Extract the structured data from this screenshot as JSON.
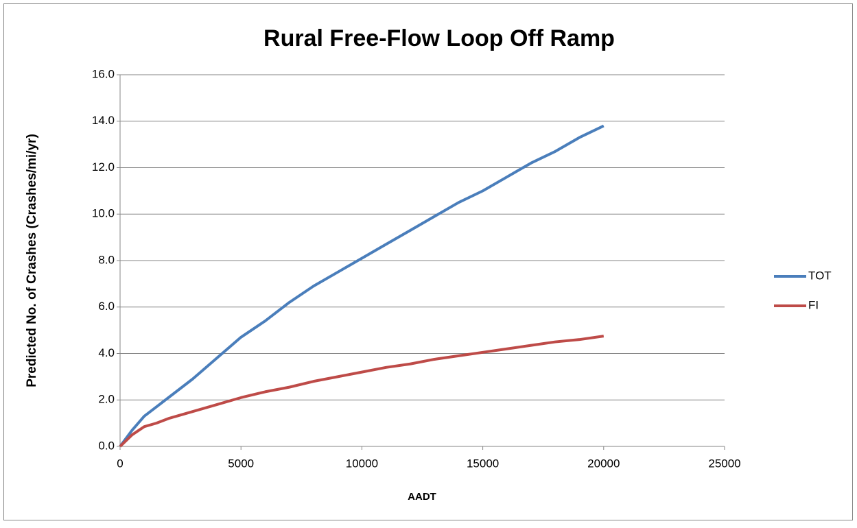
{
  "chart_data": {
    "type": "line",
    "title": "Rural Free-Flow Loop Off Ramp",
    "x_label": "AADT",
    "y_label": "Predicted No. of Crashes (Crashes/mi/yr)",
    "x": [
      0,
      500,
      1000,
      1500,
      2000,
      3000,
      4000,
      5000,
      6000,
      7000,
      8000,
      9000,
      10000,
      11000,
      12000,
      13000,
      14000,
      15000,
      16000,
      17000,
      18000,
      19000,
      20000
    ],
    "series": [
      {
        "name": "TOT",
        "color": "#4a7ebb",
        "values": [
          0,
          0.7,
          1.3,
          1.7,
          2.1,
          2.9,
          3.8,
          4.7,
          5.4,
          6.2,
          6.9,
          7.5,
          8.1,
          8.7,
          9.3,
          9.9,
          10.5,
          11.0,
          11.6,
          12.2,
          12.7,
          13.3,
          13.8
        ]
      },
      {
        "name": "FI",
        "color": "#be4b48",
        "values": [
          0,
          0.5,
          0.85,
          1.0,
          1.2,
          1.5,
          1.8,
          2.1,
          2.35,
          2.55,
          2.8,
          3.0,
          3.2,
          3.4,
          3.55,
          3.75,
          3.9,
          4.05,
          4.2,
          4.35,
          4.5,
          4.6,
          4.75
        ]
      }
    ],
    "xlim": [
      0,
      25000
    ],
    "xticks": [
      0,
      5000,
      10000,
      15000,
      20000,
      25000
    ],
    "ylim": [
      0,
      16
    ],
    "yticks": [
      {
        "value": 0,
        "label": "0.0"
      },
      {
        "value": 2,
        "label": "2.0"
      },
      {
        "value": 4,
        "label": "4.0"
      },
      {
        "value": 6,
        "label": "6.0"
      },
      {
        "value": 8,
        "label": "8.0"
      },
      {
        "value": 10,
        "label": "10.0"
      },
      {
        "value": 12,
        "label": "12.0"
      },
      {
        "value": 14,
        "label": "14.0"
      },
      {
        "value": 16,
        "label": "16.0"
      }
    ],
    "grid": true,
    "legend": "right"
  }
}
